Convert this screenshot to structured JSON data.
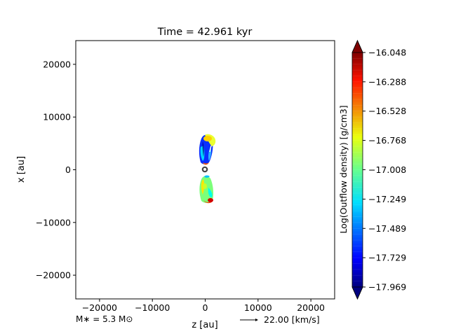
{
  "chart_data": {
    "type": "heatmap",
    "title": "Time = 42.961 kyr",
    "xlabel": "z [au]",
    "ylabel": "x [au]",
    "xlim": [
      -24500,
      24500
    ],
    "ylim": [
      -24500,
      24500
    ],
    "xticks": [
      -20000,
      -10000,
      0,
      10000,
      20000
    ],
    "xtick_labels": [
      "−20000",
      "−10000",
      "0",
      "10000",
      "20000"
    ],
    "yticks": [
      -20000,
      -10000,
      0,
      10000,
      20000
    ],
    "ytick_labels": [
      "−20000",
      "−10000",
      "0",
      "10000",
      "20000"
    ],
    "grid": false,
    "colorbar": {
      "label": "Log(Outflow density) [g/cm3]",
      "min": -17.969,
      "max": -16.048,
      "ticks": [
        -17.969,
        -17.729,
        -17.489,
        -17.249,
        -17.008,
        -16.768,
        -16.528,
        -16.288,
        -16.048
      ],
      "tick_labels": [
        "−17.969",
        "−17.729",
        "−17.489",
        "−17.249",
        "−17.008",
        "−16.768",
        "−16.528",
        "−16.288",
        "−16.048"
      ],
      "colormap": "jet",
      "extend": "both"
    },
    "stellar_mass_label": "M$_*$ = 5.3 M$_\\odot$",
    "stellar_mass_display": "M∗ = 5.3 M⊙",
    "velocity_key_label": "22.00 [km/s]",
    "star_marker": {
      "z": 0,
      "x": 0
    },
    "outflow_lobes": [
      {
        "name": "north",
        "z_range": [
          -1000,
          2000
        ],
        "x_range": [
          500,
          6500
        ]
      },
      {
        "name": "south",
        "z_range": [
          -1000,
          2000
        ],
        "x_range": [
          -6200,
          -500
        ]
      }
    ]
  }
}
